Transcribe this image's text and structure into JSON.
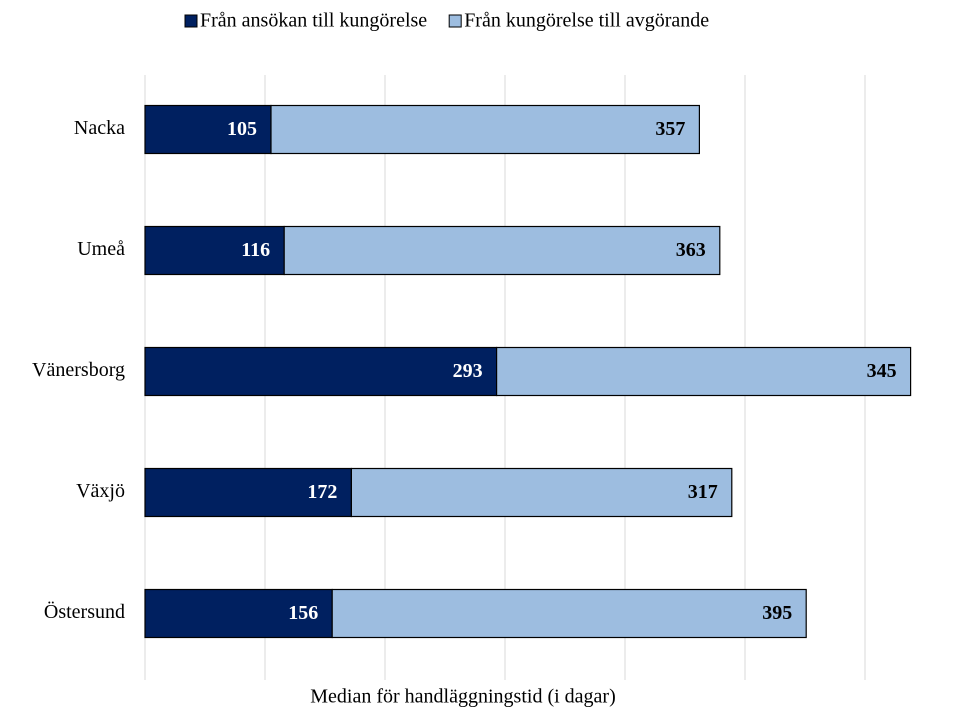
{
  "chart_data": {
    "type": "stacked_barh",
    "xlabel": "Median för handläggningstid (i dagar)",
    "categories": [
      "Nacka",
      "Umeå",
      "Vänersborg",
      "Växjö",
      "Östersund"
    ],
    "series": [
      {
        "name": "Från ansökan till kungörelse",
        "color": "#002060",
        "label_color": "#ffffff",
        "values": [
          105,
          116,
          293,
          172,
          156
        ]
      },
      {
        "name": "Från kungörelse till avgörande",
        "color": "#9dbde0",
        "label_color": "#000000",
        "values": [
          357,
          363,
          345,
          317,
          395
        ]
      }
    ],
    "xlim": [
      0,
      650
    ],
    "xticks": [
      0,
      100,
      200,
      300,
      400,
      500,
      600
    ],
    "grid": true
  }
}
